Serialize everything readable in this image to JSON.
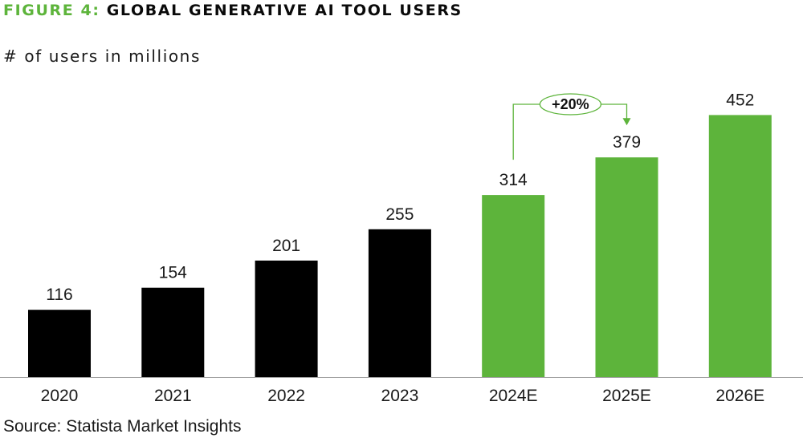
{
  "figure": {
    "label": "FIGURE 4:",
    "title": "GLOBAL GENERATIVE AI TOOL USERS"
  },
  "subtitle": "# of users in millions",
  "source": "Source: Statista Market Insights",
  "colors": {
    "accent": "#5db43b",
    "actual_bar": "#000000",
    "estimate_bar": "#5db43b"
  },
  "chart_data": {
    "type": "bar",
    "title": "GLOBAL GENERATIVE AI TOOL USERS",
    "ylabel": "# of users in millions",
    "xlabel": "",
    "categories": [
      "2020",
      "2021",
      "2022",
      "2023",
      "2024E",
      "2025E",
      "2026E"
    ],
    "values": [
      116,
      154,
      201,
      255,
      314,
      379,
      452
    ],
    "estimate": [
      false,
      false,
      false,
      false,
      true,
      true,
      true
    ],
    "ylim": [
      0,
      470
    ],
    "grid": false,
    "annotations": [
      {
        "text": "+20%",
        "from": "2024E",
        "to": "2025E"
      }
    ]
  }
}
